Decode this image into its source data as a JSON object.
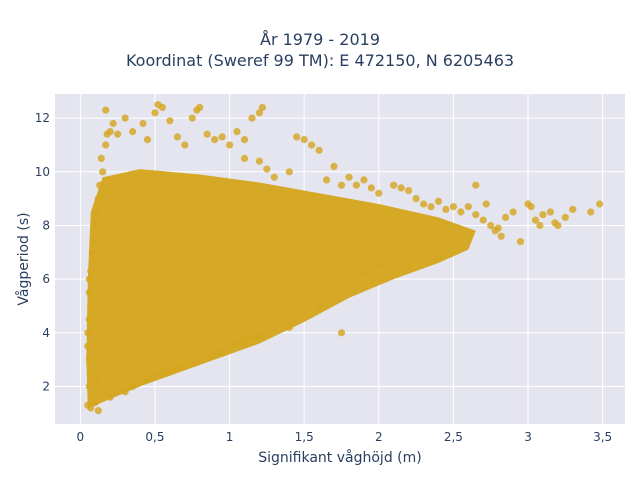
{
  "chart_data": {
    "type": "scatter",
    "title_line1": "År 1979 - 2019",
    "title_line2": "Koordinat (Sweref 99 TM): E 472150, N 6205463",
    "xlabel": "Signifikant våghöjd (m)",
    "ylabel": "Vågperiod (s)",
    "xlim": [
      -0.17,
      3.65
    ],
    "ylim": [
      0.6,
      12.9
    ],
    "x_ticks": [
      0,
      0.5,
      1,
      1.5,
      2,
      2.5,
      3,
      3.5
    ],
    "x_tick_labels": [
      "0",
      "0,5",
      "1",
      "1,5",
      "2",
      "2,5",
      "3",
      "3,5"
    ],
    "y_ticks": [
      2,
      4,
      6,
      8,
      10,
      12
    ],
    "y_tick_labels": [
      "2",
      "4",
      "6",
      "8",
      "10",
      "12"
    ],
    "grid": true,
    "marker_color": "#d4a51e",
    "plot_bg": "#e5e5ef",
    "points": [
      [
        0.07,
        1.2
      ],
      [
        0.05,
        1.3
      ],
      [
        0.1,
        1.4
      ],
      [
        0.12,
        1.1
      ],
      [
        0.08,
        1.6
      ],
      [
        0.15,
        1.8
      ],
      [
        0.06,
        2.0
      ],
      [
        0.1,
        2.2
      ],
      [
        0.07,
        2.5
      ],
      [
        0.06,
        3.0
      ],
      [
        0.05,
        3.5
      ],
      [
        0.05,
        4.0
      ],
      [
        0.06,
        4.5
      ],
      [
        0.07,
        5.0
      ],
      [
        0.06,
        5.5
      ],
      [
        0.06,
        6.0
      ],
      [
        0.07,
        6.3
      ],
      [
        0.08,
        7.0
      ],
      [
        0.09,
        7.5
      ],
      [
        0.1,
        8.0
      ],
      [
        0.11,
        8.5
      ],
      [
        0.12,
        9.0
      ],
      [
        0.13,
        9.5
      ],
      [
        0.15,
        10.0
      ],
      [
        0.14,
        10.5
      ],
      [
        0.17,
        11.0
      ],
      [
        0.18,
        11.4
      ],
      [
        0.2,
        11.5
      ],
      [
        0.22,
        11.8
      ],
      [
        0.25,
        11.4
      ],
      [
        0.17,
        12.3
      ],
      [
        0.3,
        12.0
      ],
      [
        0.35,
        11.5
      ],
      [
        0.42,
        11.8
      ],
      [
        0.45,
        11.2
      ],
      [
        0.5,
        12.2
      ],
      [
        0.52,
        12.5
      ],
      [
        0.55,
        12.4
      ],
      [
        0.6,
        11.9
      ],
      [
        0.65,
        11.3
      ],
      [
        0.7,
        11.0
      ],
      [
        0.75,
        12.0
      ],
      [
        0.78,
        12.3
      ],
      [
        0.8,
        12.4
      ],
      [
        0.85,
        11.4
      ],
      [
        0.9,
        11.2
      ],
      [
        0.95,
        11.3
      ],
      [
        1.0,
        11.0
      ],
      [
        1.05,
        11.5
      ],
      [
        1.1,
        11.2
      ],
      [
        1.15,
        12.0
      ],
      [
        1.2,
        12.2
      ],
      [
        1.22,
        12.4
      ],
      [
        1.1,
        10.5
      ],
      [
        1.2,
        10.4
      ],
      [
        1.25,
        10.1
      ],
      [
        1.3,
        9.8
      ],
      [
        1.4,
        10.0
      ],
      [
        1.45,
        11.3
      ],
      [
        1.5,
        11.2
      ],
      [
        1.55,
        11.0
      ],
      [
        1.6,
        10.8
      ],
      [
        1.7,
        10.2
      ],
      [
        1.65,
        9.7
      ],
      [
        1.75,
        9.5
      ],
      [
        1.8,
        9.8
      ],
      [
        1.85,
        9.5
      ],
      [
        1.9,
        9.7
      ],
      [
        1.95,
        9.4
      ],
      [
        2.0,
        9.2
      ],
      [
        2.1,
        9.5
      ],
      [
        2.15,
        9.4
      ],
      [
        2.2,
        9.3
      ],
      [
        2.25,
        9.0
      ],
      [
        2.3,
        8.8
      ],
      [
        2.35,
        8.7
      ],
      [
        2.4,
        8.9
      ],
      [
        2.45,
        8.6
      ],
      [
        2.5,
        8.7
      ],
      [
        2.55,
        8.5
      ],
      [
        2.6,
        8.7
      ],
      [
        2.65,
        8.4
      ],
      [
        2.7,
        8.2
      ],
      [
        2.72,
        8.8
      ],
      [
        2.75,
        8.0
      ],
      [
        2.78,
        7.8
      ],
      [
        2.8,
        7.9
      ],
      [
        2.82,
        7.6
      ],
      [
        2.85,
        8.3
      ],
      [
        2.9,
        8.5
      ],
      [
        2.95,
        7.4
      ],
      [
        3.0,
        8.8
      ],
      [
        3.02,
        8.7
      ],
      [
        3.05,
        8.2
      ],
      [
        3.08,
        8.0
      ],
      [
        3.1,
        8.4
      ],
      [
        3.15,
        8.5
      ],
      [
        3.18,
        8.1
      ],
      [
        3.2,
        8.0
      ],
      [
        3.25,
        8.3
      ],
      [
        3.3,
        8.6
      ],
      [
        3.42,
        8.5
      ],
      [
        3.48,
        8.8
      ],
      [
        2.65,
        9.5
      ],
      [
        2.0,
        6.5
      ],
      [
        1.8,
        5.8
      ],
      [
        1.6,
        5.0
      ],
      [
        1.4,
        4.2
      ],
      [
        1.2,
        3.9
      ],
      [
        1.5,
        4.8
      ],
      [
        1.7,
        5.6
      ],
      [
        1.75,
        4.0
      ],
      [
        1.65,
        6.0
      ],
      [
        1.9,
        6.2
      ],
      [
        2.2,
        6.5
      ],
      [
        2.4,
        6.8
      ],
      [
        1.0,
        3.5
      ],
      [
        0.8,
        3.0
      ],
      [
        0.6,
        2.6
      ],
      [
        0.4,
        2.2
      ],
      [
        0.25,
        1.9
      ],
      [
        0.2,
        1.6
      ],
      [
        0.3,
        1.8
      ],
      [
        0.5,
        2.4
      ],
      [
        0.7,
        2.8
      ],
      [
        0.9,
        3.2
      ],
      [
        1.1,
        3.7
      ],
      [
        1.3,
        4.3
      ],
      [
        0.35,
        2.0
      ],
      [
        0.45,
        2.3
      ],
      [
        0.55,
        2.5
      ],
      [
        0.65,
        2.7
      ],
      [
        0.75,
        2.9
      ],
      [
        0.85,
        3.1
      ],
      [
        0.95,
        3.3
      ],
      [
        1.05,
        3.6
      ],
      [
        1.15,
        3.8
      ],
      [
        1.25,
        4.0
      ]
    ]
  }
}
